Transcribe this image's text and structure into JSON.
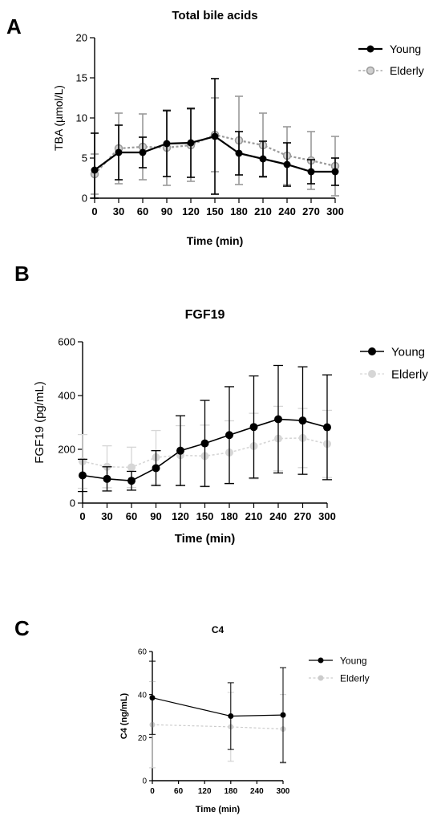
{
  "panel_letters": [
    "A",
    "B",
    "C"
  ],
  "colors": {
    "young": "#000000",
    "elderly_A": "#9a9a9a",
    "elderly_B": "#d6d6d6",
    "elderly_C": "#cccccc",
    "axis": "#000000"
  },
  "chart_data": [
    {
      "type": "line",
      "panel": "A",
      "title": "Total bile acids",
      "xlabel": "Time (min)",
      "ylabel": "TBA (µmol/L)",
      "x": [
        0,
        30,
        60,
        90,
        120,
        150,
        180,
        210,
        240,
        270,
        300
      ],
      "xticks": [
        "0",
        "30",
        "60",
        "90",
        "120",
        "150",
        "180",
        "210",
        "240",
        "270",
        "300"
      ],
      "yticks": [
        "0",
        "5",
        "10",
        "15",
        "20"
      ],
      "xlim": [
        0,
        300
      ],
      "ylim": [
        0,
        20
      ],
      "legend_position": "top-right",
      "series": [
        {
          "name": "Young",
          "style": "solid",
          "values": [
            3.5,
            5.7,
            5.7,
            6.8,
            6.9,
            7.7,
            5.6,
            4.9,
            4.2,
            3.3,
            3.3
          ],
          "err": [
            4.6,
            3.4,
            1.9,
            4.1,
            4.3,
            7.2,
            2.7,
            2.2,
            2.7,
            1.5,
            1.7
          ]
        },
        {
          "name": "Elderly",
          "style": "dashed",
          "values": [
            3.0,
            6.2,
            6.4,
            6.3,
            6.6,
            7.9,
            7.2,
            6.6,
            5.3,
            4.7,
            4.0
          ],
          "err": [
            2.5,
            4.4,
            4.1,
            4.7,
            4.5,
            4.6,
            5.5,
            4.0,
            3.6,
            3.6,
            3.7
          ]
        }
      ]
    },
    {
      "type": "line",
      "panel": "B",
      "title": "FGF19",
      "xlabel": "Time (min)",
      "ylabel": "FGF19 (pg/mL)",
      "x": [
        0,
        30,
        60,
        90,
        120,
        150,
        180,
        210,
        240,
        270,
        300
      ],
      "xticks": [
        "0",
        "30",
        "60",
        "90",
        "120",
        "150",
        "180",
        "210",
        "240",
        "270",
        "300"
      ],
      "yticks": [
        "0",
        "200",
        "400",
        "600"
      ],
      "xlim": [
        0,
        300
      ],
      "ylim": [
        0,
        600
      ],
      "legend_position": "top-right",
      "series": [
        {
          "name": "Young",
          "style": "solid",
          "values": [
            103,
            90,
            83,
            130,
            195,
            222,
            253,
            283,
            312,
            307,
            282
          ],
          "err": [
            60,
            45,
            35,
            65,
            130,
            160,
            180,
            190,
            200,
            200,
            195
          ]
        },
        {
          "name": "Elderly",
          "style": "dashed",
          "values": [
            155,
            135,
            133,
            170,
            178,
            175,
            188,
            212,
            240,
            242,
            220
          ],
          "err": [
            100,
            78,
            75,
            100,
            110,
            115,
            118,
            122,
            120,
            110,
            125
          ]
        }
      ]
    },
    {
      "type": "line",
      "panel": "C",
      "title": "C4",
      "xlabel": "Time (min)",
      "ylabel": "C4 (ng/mL)",
      "x": [
        0,
        180,
        300
      ],
      "xticks": [
        "0",
        "60",
        "120",
        "180",
        "240",
        "300"
      ],
      "yticks": [
        "0",
        "20",
        "40",
        "60"
      ],
      "xlim": [
        0,
        300
      ],
      "ylim": [
        0,
        60
      ],
      "legend_position": "top-right",
      "series": [
        {
          "name": "Young",
          "style": "solid",
          "values": [
            38.5,
            30.0,
            30.5
          ],
          "err": [
            17,
            15.5,
            22
          ]
        },
        {
          "name": "Elderly",
          "style": "dashed",
          "values": [
            26,
            25,
            24
          ],
          "err": [
            20,
            16,
            16
          ]
        }
      ]
    }
  ]
}
